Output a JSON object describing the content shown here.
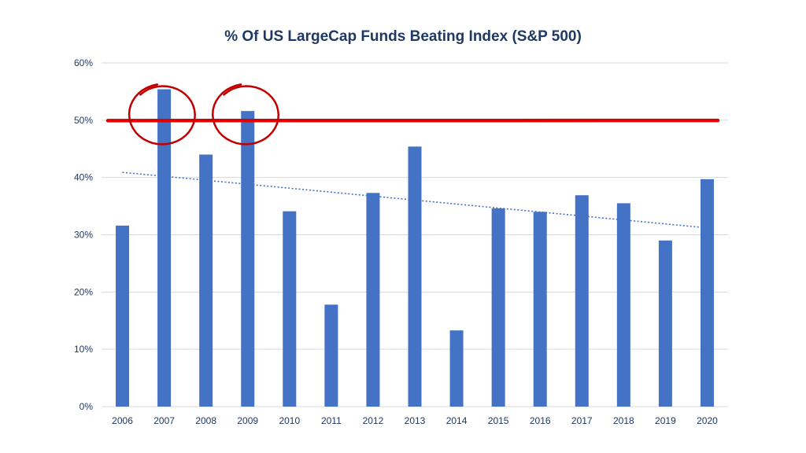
{
  "chart_data": {
    "type": "bar",
    "title": "% Of US LargeCap Funds Beating Index (S&P 500)",
    "xlabel": "",
    "ylabel": "",
    "categories": [
      "2006",
      "2007",
      "2008",
      "2009",
      "2010",
      "2011",
      "2012",
      "2013",
      "2014",
      "2015",
      "2016",
      "2017",
      "2018",
      "2019",
      "2020"
    ],
    "values": [
      31.6,
      55.4,
      44.0,
      51.6,
      34.1,
      17.8,
      37.3,
      45.4,
      13.3,
      34.6,
      34.0,
      36.9,
      35.5,
      29.0,
      39.7
    ],
    "ylim": [
      0,
      60
    ],
    "yticks": [
      "0%",
      "10%",
      "20%",
      "30%",
      "40%",
      "50%",
      "60%"
    ],
    "grid": true,
    "trendline": {
      "style": "dotted",
      "start": 40.9,
      "end": 31.2
    },
    "reference_line": {
      "value": 50
    },
    "circled_categories": [
      "2007",
      "2009"
    ],
    "colors": {
      "bar": "#4472c4",
      "trendline": "#4472c4",
      "reference_line": "#e00000",
      "circle": "#c00000",
      "grid": "#d9d9d9",
      "title": "#1f3864",
      "tick_text": "#203864"
    }
  }
}
